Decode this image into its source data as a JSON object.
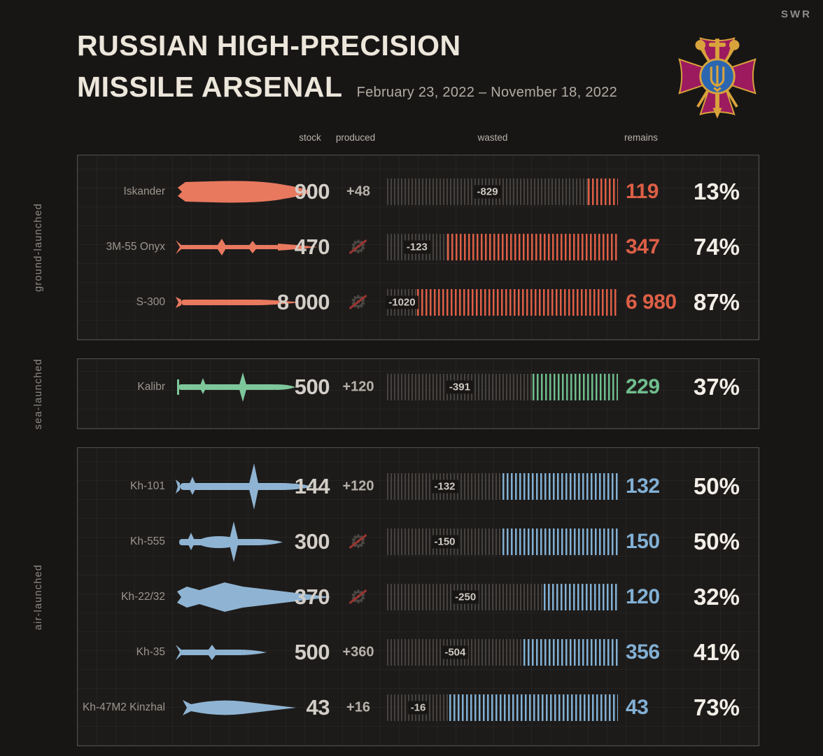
{
  "logo": "SWR",
  "header": {
    "title_line1": "RUSSIAN HIGH-PRECISION",
    "title_line2": "MISSILE ARSENAL",
    "date_range": "February 23, 2022 – November 18, 2022"
  },
  "columns": {
    "stock": "stock",
    "produced": "produced",
    "wasted": "wasted",
    "remains": "remains"
  },
  "emblem_name": "ukraine-ministry-of-defence-emblem",
  "groups": [
    {
      "label": "ground-launched",
      "colors": {
        "icon": "#e8795f",
        "accent": "#de5f46"
      },
      "rows": [
        {
          "name": "Iskander",
          "icon": "iskander",
          "stock": "900",
          "produced": "+48",
          "wasted": "-829",
          "remains": "119",
          "percent": "13%",
          "percent_value": 13
        },
        {
          "name": "3M-55 Onyx",
          "icon": "onyx",
          "stock": "470",
          "produced": "",
          "wasted": "-123",
          "remains": "347",
          "percent": "74%",
          "percent_value": 74
        },
        {
          "name": "S-300",
          "icon": "s300",
          "stock": "8 000",
          "produced": "",
          "wasted": "-1020",
          "remains": "6 980",
          "percent": "87%",
          "percent_value": 87
        }
      ]
    },
    {
      "label": "sea-launched",
      "colors": {
        "icon": "#7ec79b",
        "accent": "#6fbe8d"
      },
      "rows": [
        {
          "name": "Kalibr",
          "icon": "kalibr",
          "stock": "500",
          "produced": "+120",
          "wasted": "-391",
          "remains": "229",
          "percent": "37%",
          "percent_value": 37
        }
      ]
    },
    {
      "label": "air-launched",
      "colors": {
        "icon": "#8fb4d3",
        "accent": "#82b0d4"
      },
      "rows": [
        {
          "name": "Kh-101",
          "icon": "kh101",
          "stock": "144",
          "produced": "+120",
          "wasted": "-132",
          "remains": "132",
          "percent": "50%",
          "percent_value": 50
        },
        {
          "name": "Kh-555",
          "icon": "kh555",
          "stock": "300",
          "produced": "",
          "wasted": "-150",
          "remains": "150",
          "percent": "50%",
          "percent_value": 50
        },
        {
          "name": "Kh-22/32",
          "icon": "kh2232",
          "stock": "370",
          "produced": "",
          "wasted": "-250",
          "remains": "120",
          "percent": "32%",
          "percent_value": 32
        },
        {
          "name": "Kh-35",
          "icon": "kh35",
          "stock": "500",
          "produced": "+360",
          "wasted": "-504",
          "remains": "356",
          "percent": "41%",
          "percent_value": 41
        },
        {
          "name": "Kh-47M2 Kinzhal",
          "icon": "kinzhal",
          "stock": "43",
          "produced": "+16",
          "wasted": "-16",
          "remains": "43",
          "percent": "73%",
          "percent_value": 73
        }
      ]
    }
  ],
  "chart_data": {
    "type": "bar",
    "title": "RUSSIAN HIGH-PRECISION MISSILE ARSENAL",
    "subtitle": "February 23, 2022 – November 18, 2022",
    "categories": [
      "Iskander",
      "3M-55 Onyx",
      "S-300",
      "Kalibr",
      "Kh-101",
      "Kh-555",
      "Kh-22/32",
      "Kh-35",
      "Kh-47M2 Kinzhal"
    ],
    "category_groups": [
      "ground-launched",
      "ground-launched",
      "ground-launched",
      "sea-launched",
      "air-launched",
      "air-launched",
      "air-launched",
      "air-launched",
      "air-launched"
    ],
    "series": [
      {
        "name": "stock",
        "values": [
          900,
          470,
          8000,
          500,
          144,
          300,
          370,
          500,
          43
        ]
      },
      {
        "name": "produced",
        "values": [
          48,
          0,
          0,
          120,
          120,
          0,
          0,
          360,
          16
        ]
      },
      {
        "name": "wasted",
        "values": [
          -829,
          -123,
          -1020,
          -391,
          -132,
          -150,
          -250,
          -504,
          -16
        ]
      },
      {
        "name": "remains",
        "values": [
          119,
          347,
          6980,
          229,
          132,
          150,
          120,
          356,
          43
        ]
      },
      {
        "name": "remains_percent",
        "values": [
          13,
          74,
          87,
          37,
          50,
          50,
          32,
          41,
          73
        ]
      }
    ],
    "legend_position": "none",
    "grid": true,
    "group_colors": {
      "ground-launched": "#de5f46",
      "sea-launched": "#6fbe8d",
      "air-launched": "#82b0d4"
    }
  }
}
